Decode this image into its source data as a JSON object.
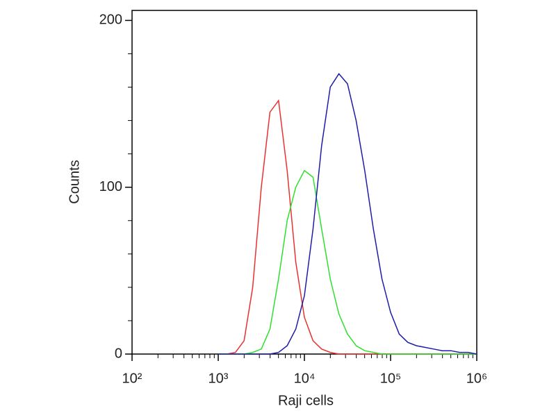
{
  "chart_data": {
    "type": "line",
    "xlabel": "Raji cells",
    "ylabel": "Counts",
    "x": [
      1000,
      1259,
      1585,
      1995,
      2512,
      3162,
      3981,
      5012,
      6310,
      7943,
      10000,
      12589,
      15849,
      19953,
      25119,
      31623,
      39811,
      50119,
      63096,
      79433,
      100000,
      125893,
      158489,
      199526,
      251189,
      316228,
      398107,
      501187,
      630957,
      794328,
      1000000
    ],
    "series": [
      {
        "color": "#e8312f",
        "values": [
          0,
          0,
          1,
          8,
          40,
          100,
          145,
          152,
          110,
          55,
          22,
          8,
          3,
          1,
          0,
          0,
          0,
          0,
          0,
          0,
          0,
          0,
          0,
          0,
          0,
          0,
          0,
          0,
          0,
          0,
          0
        ]
      },
      {
        "color": "#2ee02e",
        "values": [
          0,
          0,
          0,
          0,
          1,
          3,
          15,
          45,
          80,
          100,
          110,
          106,
          75,
          45,
          24,
          12,
          5,
          2,
          1,
          0,
          0,
          0,
          0,
          0,
          0,
          0,
          0,
          0,
          0,
          0,
          0
        ]
      },
      {
        "color": "#1c1ca8",
        "values": [
          0,
          0,
          0,
          0,
          0,
          0,
          0,
          1,
          5,
          15,
          35,
          75,
          125,
          160,
          168,
          162,
          140,
          110,
          75,
          45,
          25,
          12,
          7,
          5,
          4,
          3,
          2,
          2,
          1,
          1,
          0
        ]
      }
    ],
    "xscale": "log",
    "xlim": [
      100,
      1000000
    ],
    "xticks": [
      {
        "value": 100,
        "label": "10²"
      },
      {
        "value": 1000,
        "label": "10³"
      },
      {
        "value": 10000,
        "label": "10⁴"
      },
      {
        "value": 100000,
        "label": "10⁵"
      },
      {
        "value": 1000000,
        "label": "10⁶"
      }
    ],
    "ylim": [
      0,
      206
    ],
    "yticks": [
      0,
      100,
      200
    ]
  }
}
